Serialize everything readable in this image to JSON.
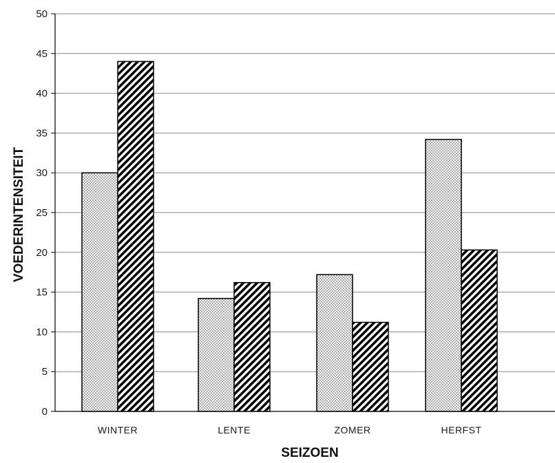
{
  "chart_data": {
    "type": "bar",
    "categories": [
      "WINTER",
      "LENTE",
      "ZOMER",
      "HERFST"
    ],
    "series": [
      {
        "pattern": "dotted",
        "values": [
          30,
          14.2,
          17.2,
          34.2
        ]
      },
      {
        "pattern": "hatched",
        "values": [
          44,
          16.2,
          11.2,
          20.3
        ]
      }
    ],
    "xlabel": "SEIZOEN",
    "ylabel": "VOEDERINTENSITEIT",
    "ylim": [
      0,
      50
    ],
    "yticks": [
      0,
      5,
      10,
      15,
      20,
      25,
      30,
      35,
      40,
      45,
      50
    ],
    "grid": true,
    "legend": "none",
    "colors": {
      "bar_fill": "#f2f2f2",
      "bar_stroke": "#000000",
      "dot": "#555555",
      "hatch": "#000000",
      "grid": "#8a8a8a"
    }
  }
}
